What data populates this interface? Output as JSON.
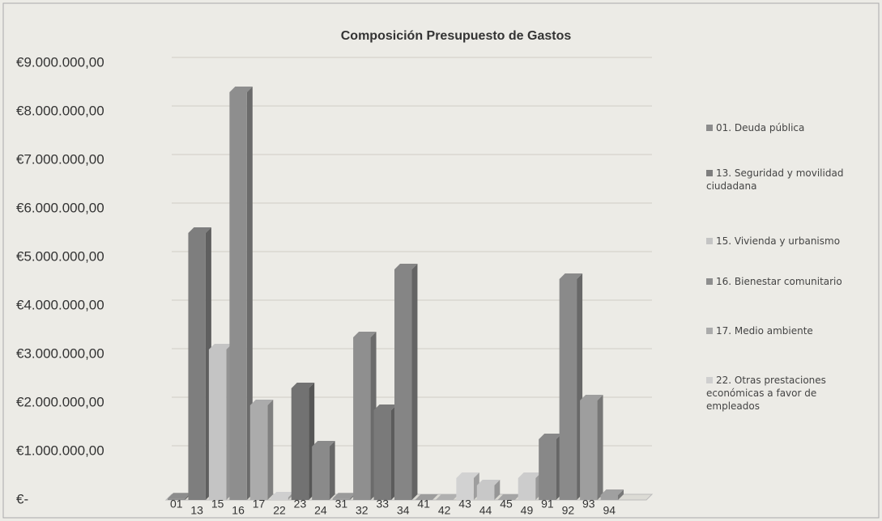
{
  "chart_data": {
    "type": "bar3d",
    "title": "Composición Presupuesto de Gastos",
    "categories": [
      "01",
      "13",
      "15",
      "16",
      "17",
      "22",
      "23",
      "24",
      "31",
      "32",
      "33",
      "34",
      "41",
      "42",
      "43",
      "44",
      "45",
      "49",
      "91",
      "92",
      "93",
      "94"
    ],
    "values": [
      30000,
      5500000,
      3100000,
      8400000,
      1950000,
      50000,
      2300000,
      1100000,
      30000,
      3350000,
      1850000,
      4750000,
      0,
      0,
      450000,
      300000,
      0,
      450000,
      1250000,
      4550000,
      2050000,
      100000
    ],
    "colors": [
      "#8c8c8c",
      "#7e7e7e",
      "#c4c4c4",
      "#8e8e8e",
      "#ababab",
      "#cfcfcf",
      "#727272",
      "#8a8a8a",
      "#9a9a9a",
      "#8f8f8f",
      "#7a7a7a",
      "#858585",
      "#9c9c9c",
      "#b0b0b0",
      "#d2d2d2",
      "#c8c8c8",
      "#a5a5a5",
      "#cccccc",
      "#888888",
      "#8a8a8a",
      "#9e9e9e",
      "#a0a0a0"
    ],
    "legend": [
      "01. Deuda pública",
      "13. Seguridad y movilidad ciudadana",
      "15. Vivienda y urbanismo",
      "16. Bienestar comunitario",
      "17. Medio ambiente",
      "22. Otras prestaciones económicas a favor de empleados"
    ],
    "ylim": [
      0,
      9000000
    ],
    "yticks": [
      {
        "value": 0,
        "label": "€-"
      },
      {
        "value": 1000000,
        "label": "€1.000.000,00"
      },
      {
        "value": 2000000,
        "label": "€2.000.000,00"
      },
      {
        "value": 3000000,
        "label": "€3.000.000,00"
      },
      {
        "value": 4000000,
        "label": "€4.000.000,00"
      },
      {
        "value": 5000000,
        "label": "€5.000.000,00"
      },
      {
        "value": 6000000,
        "label": "€6.000.000,00"
      },
      {
        "value": 7000000,
        "label": "€7.000.000,00"
      },
      {
        "value": 8000000,
        "label": "€8.000.000,00"
      },
      {
        "value": 9000000,
        "label": "€9.000.000,00"
      }
    ],
    "grid": true
  }
}
